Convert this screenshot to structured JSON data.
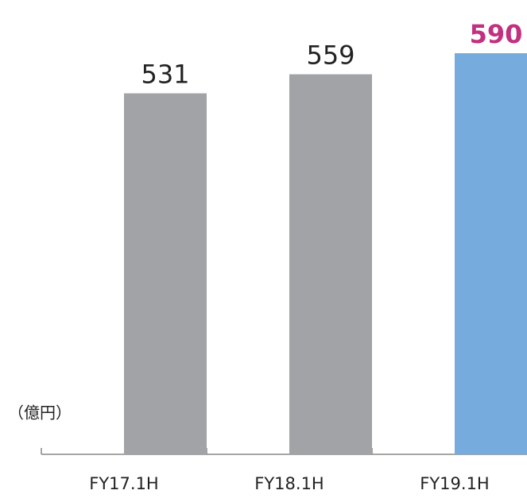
{
  "chart_data": {
    "type": "bar",
    "unit_label": "（億円）",
    "categories": [
      "FY17.1H",
      "FY18.1H",
      "FY19.1H"
    ],
    "values": [
      531,
      559,
      590
    ],
    "colors": [
      "#a2a3a7",
      "#a2a3a7",
      "#76acdd"
    ],
    "label_colors": [
      "#222222",
      "#222222",
      "#c2307f"
    ],
    "label_bold": [
      false,
      false,
      true
    ],
    "ylim": [
      0,
      590
    ]
  }
}
